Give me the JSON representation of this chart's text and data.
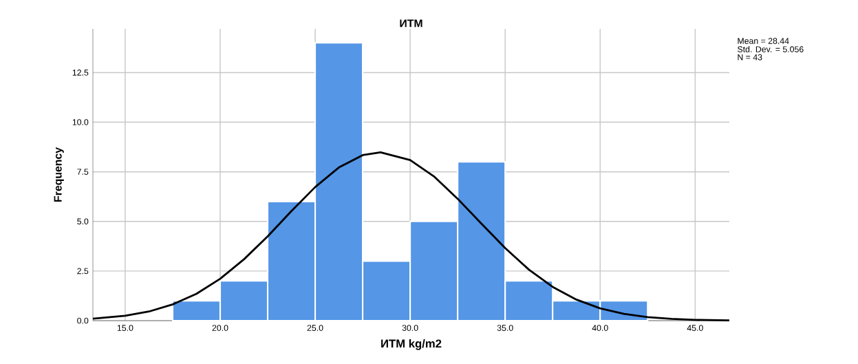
{
  "chart_data": {
    "type": "histogram",
    "title": "ИТМ",
    "xlabel": "ИТМ kg/m2",
    "ylabel": "Frequency",
    "bins": [
      17.5,
      20,
      22.5,
      25,
      27.5,
      30,
      32.5,
      35,
      37.5,
      40,
      42.5
    ],
    "values": [
      1,
      2,
      6,
      14,
      3,
      5,
      8,
      2,
      1,
      1
    ],
    "color": "#5596e6",
    "series": [
      {
        "type": "line",
        "color": "#000000",
        "x": [
          13.3,
          15,
          16.25,
          17.5,
          18.75,
          20,
          21.25,
          22.5,
          23.75,
          25,
          26.25,
          27.5,
          28.44,
          30,
          31.25,
          32.5,
          33.75,
          35,
          36.25,
          37.5,
          38.75,
          40,
          41.25,
          42.5,
          43.75,
          45,
          46.8
        ],
        "values": [
          0.1,
          0.25,
          0.46,
          0.82,
          1.35,
          2.11,
          3.09,
          4.25,
          5.52,
          6.73,
          7.72,
          8.34,
          8.48,
          8.09,
          7.27,
          6.14,
          4.89,
          3.66,
          2.57,
          1.7,
          1.06,
          0.62,
          0.34,
          0.18,
          0.09,
          0.04,
          0.01
        ]
      }
    ],
    "xlim": [
      13.3,
      46.8
    ],
    "ylim": [
      0,
      14.7
    ],
    "xticks": [
      {
        "value": 15,
        "label": "15.0"
      },
      {
        "value": 20,
        "label": "20.0"
      },
      {
        "value": 25,
        "label": "25.0"
      },
      {
        "value": 30,
        "label": "30.0"
      },
      {
        "value": 35,
        "label": "35.0"
      },
      {
        "value": 40,
        "label": "40.0"
      },
      {
        "value": 45,
        "label": "45.0"
      }
    ],
    "yticks": [
      {
        "value": 0,
        "label": "0.0"
      },
      {
        "value": 2.5,
        "label": "2.5"
      },
      {
        "value": 5,
        "label": "5.0"
      },
      {
        "value": 7.5,
        "label": "7.5"
      },
      {
        "value": 10,
        "label": "10.0"
      },
      {
        "value": 12.5,
        "label": "12.5"
      }
    ],
    "grid": true,
    "annotations": [
      "Mean = 28.44",
      "Std. Dev. = 5.056",
      "N = 43"
    ]
  }
}
